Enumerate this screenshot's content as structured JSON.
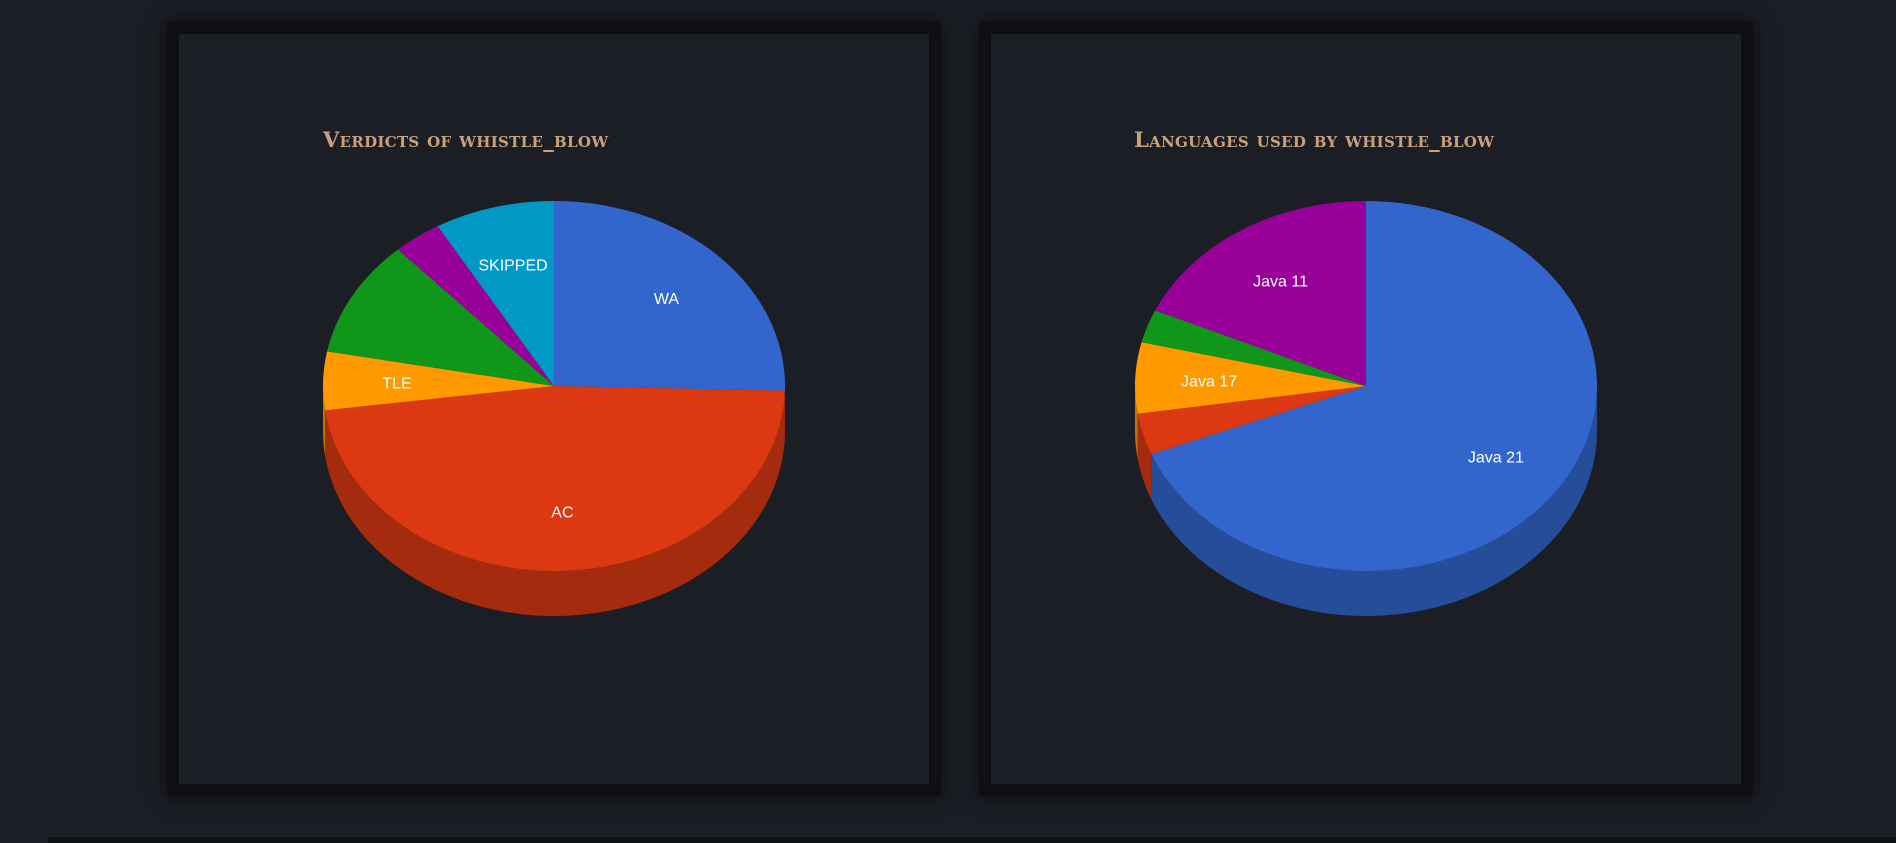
{
  "chart_data": [
    {
      "type": "pie",
      "style": "3d",
      "title": "Verdicts of whistle_blow",
      "slices": [
        {
          "label": "WA",
          "value": 25.4,
          "color": "#3366cc",
          "show_label": true
        },
        {
          "label": "AC",
          "value": 47.5,
          "color": "#dc3912",
          "show_label": true
        },
        {
          "label": "TLE",
          "value": 5.1,
          "color": "#ff9900",
          "show_label": true
        },
        {
          "label": "",
          "value": 10.2,
          "color": "#109618",
          "show_label": false
        },
        {
          "label": "",
          "value": 3.4,
          "color": "#990099",
          "show_label": false
        },
        {
          "label": "SKIPPED",
          "value": 8.4,
          "color": "#0099c6",
          "show_label": true
        }
      ]
    },
    {
      "type": "pie",
      "style": "3d",
      "title": "Languages used by whistle_blow",
      "slices": [
        {
          "label": "Java 21",
          "value": 69.0,
          "color": "#3366cc",
          "show_label": true
        },
        {
          "label": "",
          "value": 3.6,
          "color": "#dc3912",
          "show_label": false
        },
        {
          "label": "Java 17",
          "value": 6.2,
          "color": "#ff9900",
          "show_label": true
        },
        {
          "label": "",
          "value": 2.9,
          "color": "#109618",
          "show_label": false
        },
        {
          "label": "Java 11",
          "value": 18.3,
          "color": "#990099",
          "show_label": true
        }
      ]
    }
  ]
}
